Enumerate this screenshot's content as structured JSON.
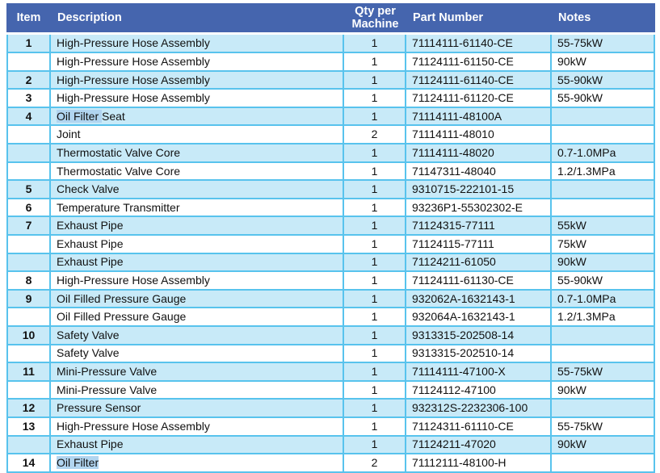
{
  "colors": {
    "header_bg": "#4565AE",
    "header_text": "#FFFFFF",
    "row_alt_bg": "#C8EAF8",
    "row_bg": "#FFFFFF",
    "grid_border": "#58C3ED",
    "text": "#111111",
    "highlight": "#B1D5F0"
  },
  "table": {
    "headers": {
      "item": "Item",
      "description": "Description",
      "qty": "Qty per Machine",
      "part_number": "Part Number",
      "notes": "Notes"
    },
    "rows": [
      {
        "item": "1",
        "description": [
          {
            "text": "High-Pressure Hose Assembly",
            "highlight": false
          }
        ],
        "qty": "1",
        "part_number": "71114111-61140-CE",
        "notes": "55-75kW",
        "shaded": true
      },
      {
        "item": "",
        "description": [
          {
            "text": "High-Pressure Hose Assembly",
            "highlight": false
          }
        ],
        "qty": "1",
        "part_number": "71124111-61150-CE",
        "notes": "90kW",
        "shaded": false
      },
      {
        "item": "2",
        "description": [
          {
            "text": "High-Pressure Hose Assembly",
            "highlight": false
          }
        ],
        "qty": "1",
        "part_number": "71124111-61140-CE",
        "notes": "55-90kW",
        "shaded": true
      },
      {
        "item": "3",
        "description": [
          {
            "text": "High-Pressure Hose Assembly",
            "highlight": false
          }
        ],
        "qty": "1",
        "part_number": "71124111-61120-CE",
        "notes": "55-90kW",
        "shaded": false
      },
      {
        "item": "4",
        "description": [
          {
            "text": "Oil Filter ",
            "highlight": true
          },
          {
            "text": "Seat",
            "highlight": false
          }
        ],
        "qty": "1",
        "part_number": "71114111-48100A",
        "notes": "",
        "shaded": true
      },
      {
        "item": "",
        "description": [
          {
            "text": "Joint",
            "highlight": false
          }
        ],
        "qty": "2",
        "part_number": "71114111-48010",
        "notes": "",
        "shaded": false
      },
      {
        "item": "",
        "description": [
          {
            "text": "Thermostatic Valve Core",
            "highlight": false
          }
        ],
        "qty": "1",
        "part_number": "71114111-48020",
        "notes": "0.7-1.0MPa",
        "shaded": true
      },
      {
        "item": "",
        "description": [
          {
            "text": "Thermostatic Valve Core",
            "highlight": false
          }
        ],
        "qty": "1",
        "part_number": "71147311-48040",
        "notes": "1.2/1.3MPa",
        "shaded": false
      },
      {
        "item": "5",
        "description": [
          {
            "text": "Check Valve",
            "highlight": false
          }
        ],
        "qty": "1",
        "part_number": "9310715-222101-15",
        "notes": "",
        "shaded": true
      },
      {
        "item": "6",
        "description": [
          {
            "text": "Temperature Transmitter",
            "highlight": false
          }
        ],
        "qty": "1",
        "part_number": "93236P1-55302302-E",
        "notes": "",
        "shaded": false
      },
      {
        "item": "7",
        "description": [
          {
            "text": "Exhaust Pipe",
            "highlight": false
          }
        ],
        "qty": "1",
        "part_number": "71124315-77111",
        "notes": "55kW",
        "shaded": true
      },
      {
        "item": "",
        "description": [
          {
            "text": "Exhaust Pipe",
            "highlight": false
          }
        ],
        "qty": "1",
        "part_number": "71124115-77111",
        "notes": "75kW",
        "shaded": false
      },
      {
        "item": "",
        "description": [
          {
            "text": "Exhaust Pipe",
            "highlight": false
          }
        ],
        "qty": "1",
        "part_number": "71124211-61050",
        "notes": "90kW",
        "shaded": true
      },
      {
        "item": "8",
        "description": [
          {
            "text": "High-Pressure Hose Assembly",
            "highlight": false
          }
        ],
        "qty": "1",
        "part_number": "71124111-61130-CE",
        "notes": "55-90kW",
        "shaded": false
      },
      {
        "item": "9",
        "description": [
          {
            "text": "Oil Filled Pressure Gauge",
            "highlight": false
          }
        ],
        "qty": "1",
        "part_number": "932062A-1632143-1",
        "notes": "0.7-1.0MPa",
        "shaded": true
      },
      {
        "item": "",
        "description": [
          {
            "text": "Oil Filled Pressure Gauge",
            "highlight": false
          }
        ],
        "qty": "1",
        "part_number": "932064A-1632143-1",
        "notes": "1.2/1.3MPa",
        "shaded": false
      },
      {
        "item": "10",
        "description": [
          {
            "text": "Safety Valve",
            "highlight": false
          }
        ],
        "qty": "1",
        "part_number": "9313315-202508-14",
        "notes": "",
        "shaded": true
      },
      {
        "item": "",
        "description": [
          {
            "text": "Safety Valve",
            "highlight": false
          }
        ],
        "qty": "1",
        "part_number": "9313315-202510-14",
        "notes": "",
        "shaded": false
      },
      {
        "item": "11",
        "description": [
          {
            "text": "Mini-Pressure Valve",
            "highlight": false
          }
        ],
        "qty": "1",
        "part_number": "71114111-47100-X",
        "notes": "55-75kW",
        "shaded": true
      },
      {
        "item": "",
        "description": [
          {
            "text": "Mini-Pressure Valve",
            "highlight": false
          }
        ],
        "qty": "1",
        "part_number": "71124112-47100",
        "notes": "90kW",
        "shaded": false
      },
      {
        "item": "12",
        "description": [
          {
            "text": "Pressure Sensor",
            "highlight": false
          }
        ],
        "qty": "1",
        "part_number": "932312S-2232306-100",
        "notes": "",
        "shaded": true
      },
      {
        "item": "13",
        "description": [
          {
            "text": "High-Pressure Hose Assembly",
            "highlight": false
          }
        ],
        "qty": "1",
        "part_number": "71124311-61110-CE",
        "notes": "55-75kW",
        "shaded": false
      },
      {
        "item": "",
        "description": [
          {
            "text": "Exhaust Pipe",
            "highlight": false
          }
        ],
        "qty": "1",
        "part_number": "71124211-47020",
        "notes": "90kW",
        "shaded": true
      },
      {
        "item": "14",
        "description": [
          {
            "text": "Oil Filter",
            "highlight": true
          }
        ],
        "qty": "2",
        "part_number": "71112111-48100-H",
        "notes": "",
        "shaded": false
      }
    ]
  }
}
